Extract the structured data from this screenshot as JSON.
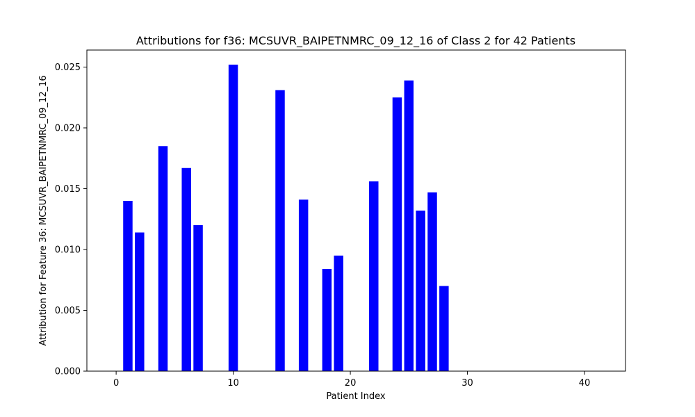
{
  "chart_data": {
    "type": "bar",
    "title": "Attributions for f36: MCSUVR_BAIPETNMRC_09_12_16 of Class 2 for 42 Patients",
    "xlabel": "Patient Index",
    "ylabel": "Attribution for Feature 36: MCSUVR_BAIPETNMRC_09_12_16",
    "xlim": [
      -2.5,
      43.5
    ],
    "ylim": [
      0,
      0.0264
    ],
    "x_ticks": [
      0,
      10,
      20,
      30,
      40
    ],
    "x_tick_labels": [
      "0",
      "10",
      "20",
      "30",
      "40"
    ],
    "y_ticks": [
      0,
      0.005,
      0.01,
      0.015,
      0.02,
      0.025
    ],
    "y_tick_labels": [
      "0.000",
      "0.005",
      "0.010",
      "0.015",
      "0.020",
      "0.025"
    ],
    "grid": false,
    "bar_color": "#0000ff",
    "x": [
      0,
      1,
      2,
      3,
      4,
      5,
      6,
      7,
      8,
      9,
      10,
      11,
      12,
      13,
      14,
      15,
      16,
      17,
      18,
      19,
      20,
      21,
      22,
      23,
      24,
      25,
      26,
      27,
      28,
      29,
      30,
      31,
      32,
      33,
      34,
      35,
      36,
      37,
      38,
      39,
      40,
      41
    ],
    "values": [
      0,
      0.014,
      0.0114,
      0,
      0.0185,
      0,
      0.0167,
      0.012,
      0,
      0,
      0.0252,
      0,
      0,
      0,
      0.0231,
      0,
      0.0141,
      0,
      0.0084,
      0.0095,
      0,
      0,
      0.0156,
      0,
      0.0225,
      0.0239,
      0.0132,
      0.0147,
      0.007,
      0,
      0,
      0,
      0,
      0,
      0,
      0,
      0,
      0,
      0,
      0,
      0,
      0
    ]
  }
}
